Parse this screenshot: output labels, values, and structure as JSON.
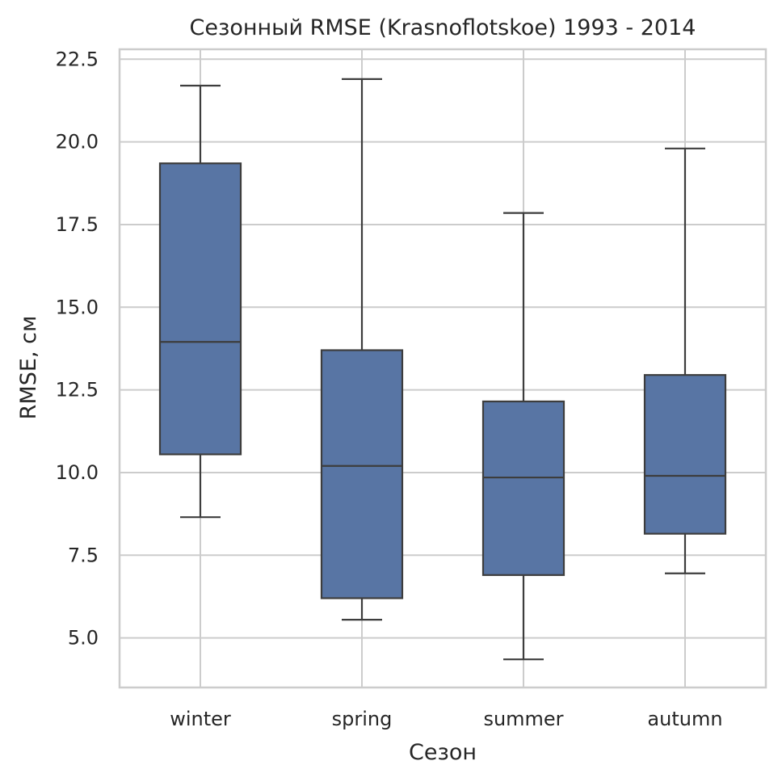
{
  "chart_data": {
    "type": "box",
    "title": "Сезонный RMSE (Krasnoflotskoe) 1993 - 2014",
    "xlabel": "Сезон",
    "ylabel": "RMSE, см",
    "ylim": [
      3.5,
      22.8
    ],
    "y_ticks": [
      "5.0",
      "7.5",
      "10.0",
      "12.5",
      "15.0",
      "17.5",
      "20.0",
      "22.5"
    ],
    "categories": [
      "winter",
      "spring",
      "summer",
      "autumn"
    ],
    "grid": true,
    "series": [
      {
        "category": "winter",
        "whisker_low": 8.65,
        "q1": 10.55,
        "median": 13.95,
        "q3": 19.35,
        "whisker_high": 21.7
      },
      {
        "category": "spring",
        "whisker_low": 5.55,
        "q1": 6.2,
        "median": 10.2,
        "q3": 13.7,
        "whisker_high": 21.9
      },
      {
        "category": "summer",
        "whisker_low": 4.35,
        "q1": 6.9,
        "median": 9.85,
        "q3": 12.15,
        "whisker_high": 17.85
      },
      {
        "category": "autumn",
        "whisker_low": 6.95,
        "q1": 8.15,
        "median": 9.9,
        "q3": 12.95,
        "whisker_high": 19.8
      }
    ],
    "colors": {
      "box_fill": "#5875a4",
      "box_line": "#3d3d3d",
      "grid": "#cccccc",
      "frame": "#cccccc"
    }
  }
}
